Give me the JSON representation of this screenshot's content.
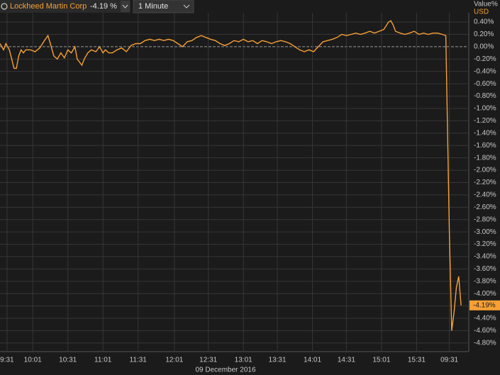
{
  "toolbar": {
    "change": "-4.19 %",
    "interval": "1 Minute"
  },
  "chart_data": {
    "type": "line",
    "axis_title": "Value%",
    "axis_unit": "USD",
    "subtitle": "09 December 2016",
    "series": [
      {
        "name": "Lockheed Martin Corp",
        "color": "#f7a035",
        "x": [
          0,
          3,
          5,
          8,
          10,
          12,
          14,
          16,
          18,
          20,
          22,
          26,
          30,
          34,
          38,
          41,
          43,
          46,
          49,
          52,
          55,
          58,
          61,
          64,
          66,
          68,
          70,
          72,
          75,
          78,
          82,
          85,
          88,
          90,
          93,
          96,
          100,
          104,
          108,
          112,
          116,
          120,
          124,
          128,
          132,
          136,
          140,
          144,
          148,
          152,
          156,
          160,
          164,
          168,
          172,
          176,
          180,
          184,
          188,
          192,
          196,
          200,
          204,
          208,
          212,
          216,
          220,
          224,
          228,
          232,
          236,
          240,
          244,
          248,
          252,
          256,
          260,
          264,
          268,
          272,
          276,
          280,
          284,
          288,
          292,
          296,
          300,
          304,
          308,
          312,
          316,
          320,
          324,
          328,
          332,
          334,
          336,
          338,
          342,
          346,
          350,
          354,
          358,
          362,
          366,
          370,
          374,
          378,
          381,
          384,
          386,
          388,
          390,
          392,
          394
        ],
        "values": [
          0.05,
          -0.05,
          0.05,
          -0.05,
          -0.2,
          -0.35,
          -0.35,
          -0.15,
          -0.05,
          -0.1,
          -0.05,
          -0.05,
          -0.08,
          -0.02,
          0.1,
          0.18,
          0.05,
          -0.15,
          -0.2,
          -0.1,
          -0.18,
          -0.05,
          -0.1,
          0.0,
          -0.2,
          -0.25,
          -0.3,
          -0.2,
          -0.1,
          -0.05,
          -0.08,
          0.0,
          -0.1,
          -0.05,
          -0.1,
          -0.1,
          -0.05,
          -0.02,
          -0.08,
          0.02,
          0.05,
          0.05,
          0.1,
          0.12,
          0.1,
          0.12,
          0.1,
          0.12,
          0.1,
          0.05,
          0.0,
          0.08,
          0.1,
          0.15,
          0.18,
          0.15,
          0.12,
          0.1,
          0.05,
          0.02,
          0.05,
          0.1,
          0.08,
          0.12,
          0.08,
          0.1,
          0.05,
          0.1,
          0.08,
          0.05,
          0.08,
          0.1,
          0.08,
          0.05,
          0.0,
          -0.05,
          -0.08,
          -0.05,
          -0.08,
          0.0,
          0.08,
          0.1,
          0.12,
          0.15,
          0.2,
          0.18,
          0.2,
          0.22,
          0.2,
          0.22,
          0.25,
          0.22,
          0.25,
          0.28,
          0.4,
          0.42,
          0.35,
          0.25,
          0.22,
          0.2,
          0.22,
          0.25,
          0.2,
          0.22,
          0.2,
          0.22,
          0.22,
          0.2,
          0.18,
          -3.0,
          -4.6,
          -4.3,
          -3.9,
          -3.72,
          -4.19
        ]
      }
    ],
    "last_value": {
      "value": -4.19,
      "label": "-4.19%"
    },
    "xlim": [
      0,
      400
    ],
    "xticks": [
      {
        "value": 6,
        "label": "9:31"
      },
      {
        "value": 28,
        "label": "10:01"
      },
      {
        "value": 58,
        "label": "10:31"
      },
      {
        "value": 88,
        "label": "11:01"
      },
      {
        "value": 118,
        "label": "11:31"
      },
      {
        "value": 149,
        "label": "12:01"
      },
      {
        "value": 178,
        "label": "12:31"
      },
      {
        "value": 208,
        "label": "13:01"
      },
      {
        "value": 237,
        "label": "13:31"
      },
      {
        "value": 267,
        "label": "14:01"
      },
      {
        "value": 296,
        "label": "14:31"
      },
      {
        "value": 326,
        "label": "15:01"
      },
      {
        "value": 356,
        "label": "15:31"
      },
      {
        "value": 384,
        "label": "09:31"
      }
    ],
    "ylim": [
      -4.87,
      0.55
    ],
    "yticks": [
      {
        "value": 0.4,
        "label": "0.40%"
      },
      {
        "value": 0.2,
        "label": "0.20%"
      },
      {
        "value": 0,
        "label": "0.00%"
      },
      {
        "value": -0.2,
        "label": "-0.20%"
      },
      {
        "value": -0.4,
        "label": "-0.40%"
      },
      {
        "value": -0.6,
        "label": "-0.60%"
      },
      {
        "value": -0.8,
        "label": "-0.80%"
      },
      {
        "value": -1.0,
        "label": "-1.00%"
      },
      {
        "value": -1.2,
        "label": "-1.20%"
      },
      {
        "value": -1.4,
        "label": "-1.40%"
      },
      {
        "value": -1.6,
        "label": "-1.60%"
      },
      {
        "value": -1.8,
        "label": "-1.80%"
      },
      {
        "value": -2.0,
        "label": "-2.00%"
      },
      {
        "value": -2.2,
        "label": "-2.20%"
      },
      {
        "value": -2.4,
        "label": "-2.40%"
      },
      {
        "value": -2.6,
        "label": "-2.60%"
      },
      {
        "value": -2.8,
        "label": "-2.80%"
      },
      {
        "value": -3.0,
        "label": "-3.00%"
      },
      {
        "value": -3.2,
        "label": "-3.20%"
      },
      {
        "value": -3.4,
        "label": "-3.40%"
      },
      {
        "value": -3.6,
        "label": "-3.60%"
      },
      {
        "value": -3.8,
        "label": "-3.80%"
      },
      {
        "value": -4.0,
        "label": "-4.00%"
      },
      {
        "value": -4.2,
        "label": "-4.20%"
      },
      {
        "value": -4.4,
        "label": "-4.40%"
      },
      {
        "value": -4.6,
        "label": "-4.60%"
      },
      {
        "value": -4.8,
        "label": "-4.80%"
      }
    ],
    "grid": true
  }
}
